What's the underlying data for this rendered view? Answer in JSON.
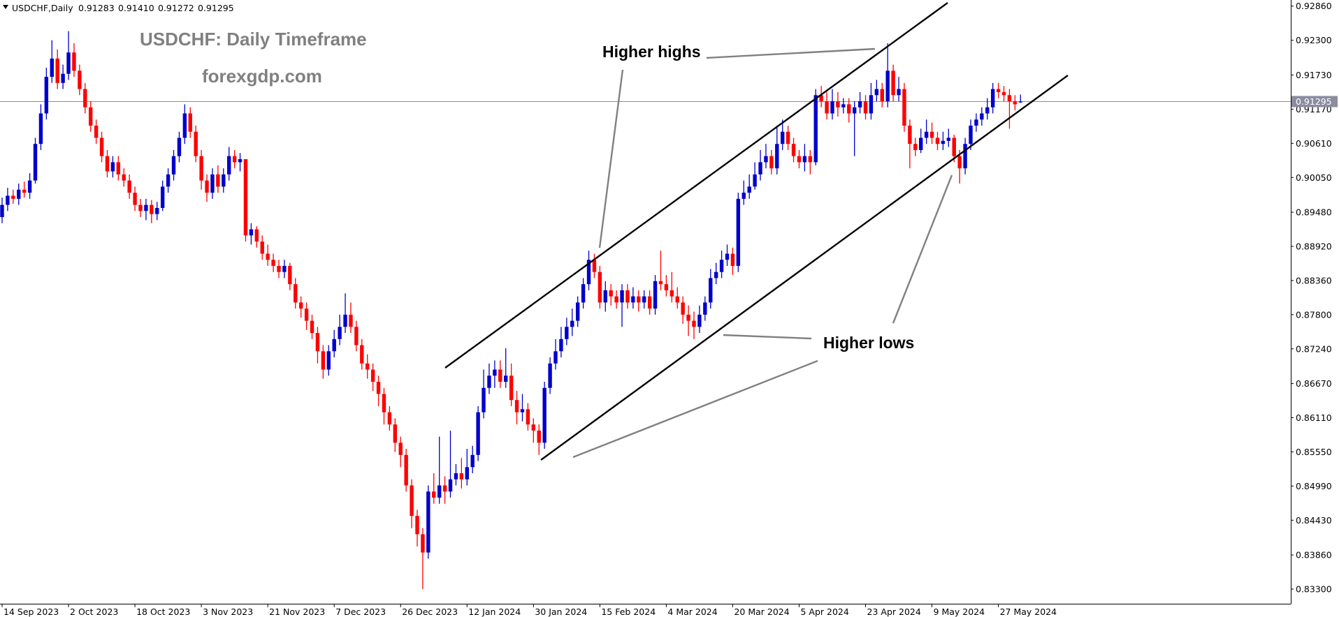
{
  "chart_data": {
    "type": "candlestick",
    "symbol": "USDCHF,Daily",
    "header_labels": [
      "0.91283",
      "0.91410",
      "0.91272",
      "0.91295"
    ],
    "title": "USDCHF: Daily Timeframe",
    "subtitle": "forexgdp.com",
    "annotations": [
      "Higher highs",
      "Higher lows"
    ],
    "up_color": "#0000cc",
    "down_color": "#ff0000",
    "ylim": [
      0.8306,
      0.9296
    ],
    "yticks": [
      {
        "value": 0.9286,
        "label": "0.92860"
      },
      {
        "value": 0.923,
        "label": "0.92300"
      },
      {
        "value": 0.9173,
        "label": "0.91730"
      },
      {
        "value": 0.9117,
        "label": "0.91170"
      },
      {
        "value": 0.9061,
        "label": "0.90610"
      },
      {
        "value": 0.9005,
        "label": "0.90050"
      },
      {
        "value": 0.8948,
        "label": "0.89480"
      },
      {
        "value": 0.8892,
        "label": "0.88920"
      },
      {
        "value": 0.8836,
        "label": "0.88360"
      },
      {
        "value": 0.878,
        "label": "0.87800"
      },
      {
        "value": 0.8724,
        "label": "0.87240"
      },
      {
        "value": 0.8667,
        "label": "0.86670"
      },
      {
        "value": 0.8611,
        "label": "0.86110"
      },
      {
        "value": 0.8555,
        "label": "0.85550"
      },
      {
        "value": 0.8499,
        "label": "0.84990"
      },
      {
        "value": 0.8443,
        "label": "0.84430"
      },
      {
        "value": 0.8386,
        "label": "0.83860"
      },
      {
        "value": 0.833,
        "label": "0.83300"
      }
    ],
    "date_labels": {
      "0": "14 Sep 2023",
      "12": "2 Oct 2023",
      "24": "18 Oct 2023",
      "36": "3 Nov 2023",
      "48": "21 Nov 2023",
      "60": "7 Dec 2023",
      "72": "26 Dec 2023",
      "84": "12 Jan 2024",
      "96": "30 Jan 2024",
      "108": "15 Feb 2024",
      "120": "4 Mar 2024",
      "132": "20 Mar 2024",
      "144": "5 Apr 2024",
      "156": "23 Apr 2024",
      "168": "9 May 2024",
      "180": "27 May 2024"
    },
    "candles": [
      [
        0.894,
        0.8972,
        0.893,
        0.896
      ],
      [
        0.896,
        0.8988,
        0.895,
        0.8975
      ],
      [
        0.8975,
        0.8985,
        0.8962,
        0.897
      ],
      [
        0.897,
        0.8995,
        0.896,
        0.8985
      ],
      [
        0.8985,
        0.8998,
        0.8972,
        0.898
      ],
      [
        0.898,
        0.9012,
        0.897,
        0.9
      ],
      [
        0.9,
        0.907,
        0.8995,
        0.906
      ],
      [
        0.906,
        0.9125,
        0.905,
        0.911
      ],
      [
        0.911,
        0.9185,
        0.91,
        0.917
      ],
      [
        0.917,
        0.923,
        0.916,
        0.92
      ],
      [
        0.92,
        0.9215,
        0.915,
        0.916
      ],
      [
        0.916,
        0.919,
        0.915,
        0.9175
      ],
      [
        0.9175,
        0.9245,
        0.9165,
        0.921
      ],
      [
        0.921,
        0.9225,
        0.917,
        0.918
      ],
      [
        0.918,
        0.919,
        0.914,
        0.915
      ],
      [
        0.915,
        0.916,
        0.911,
        0.912
      ],
      [
        0.912,
        0.913,
        0.908,
        0.909
      ],
      [
        0.909,
        0.91,
        0.906,
        0.907
      ],
      [
        0.907,
        0.908,
        0.903,
        0.904
      ],
      [
        0.904,
        0.905,
        0.9005,
        0.9015
      ],
      [
        0.9015,
        0.904,
        0.9005,
        0.903
      ],
      [
        0.903,
        0.904,
        0.9,
        0.901
      ],
      [
        0.901,
        0.902,
        0.899,
        0.9
      ],
      [
        0.9,
        0.901,
        0.897,
        0.898
      ],
      [
        0.898,
        0.899,
        0.895,
        0.896
      ],
      [
        0.896,
        0.897,
        0.894,
        0.895
      ],
      [
        0.895,
        0.897,
        0.8935,
        0.896
      ],
      [
        0.896,
        0.8968,
        0.893,
        0.8945
      ],
      [
        0.8945,
        0.8965,
        0.8935,
        0.8955
      ],
      [
        0.8955,
        0.9,
        0.895,
        0.899
      ],
      [
        0.899,
        0.902,
        0.898,
        0.901
      ],
      [
        0.901,
        0.905,
        0.9,
        0.904
      ],
      [
        0.904,
        0.908,
        0.903,
        0.907
      ],
      [
        0.907,
        0.9125,
        0.906,
        0.911
      ],
      [
        0.911,
        0.912,
        0.907,
        0.908
      ],
      [
        0.908,
        0.909,
        0.903,
        0.904
      ],
      [
        0.904,
        0.905,
        0.8985,
        0.9
      ],
      [
        0.9,
        0.901,
        0.8965,
        0.898
      ],
      [
        0.898,
        0.902,
        0.897,
        0.901
      ],
      [
        0.901,
        0.9025,
        0.898,
        0.899
      ],
      [
        0.899,
        0.902,
        0.898,
        0.901
      ],
      [
        0.901,
        0.9055,
        0.9,
        0.904
      ],
      [
        0.904,
        0.905,
        0.902,
        0.903
      ],
      [
        0.903,
        0.9045,
        0.9015,
        0.9035
      ],
      [
        0.9035,
        0.9035,
        0.89,
        0.891
      ],
      [
        0.891,
        0.893,
        0.8895,
        0.892
      ],
      [
        0.892,
        0.8925,
        0.889,
        0.89
      ],
      [
        0.89,
        0.891,
        0.887,
        0.888
      ],
      [
        0.888,
        0.8895,
        0.886,
        0.887
      ],
      [
        0.887,
        0.888,
        0.885,
        0.886
      ],
      [
        0.886,
        0.887,
        0.884,
        0.885
      ],
      [
        0.885,
        0.887,
        0.884,
        0.886
      ],
      [
        0.886,
        0.8865,
        0.882,
        0.883
      ],
      [
        0.883,
        0.884,
        0.879,
        0.88
      ],
      [
        0.88,
        0.881,
        0.8775,
        0.879
      ],
      [
        0.879,
        0.88,
        0.8755,
        0.877
      ],
      [
        0.877,
        0.878,
        0.874,
        0.875
      ],
      [
        0.875,
        0.876,
        0.87,
        0.872
      ],
      [
        0.872,
        0.873,
        0.8675,
        0.869
      ],
      [
        0.869,
        0.873,
        0.868,
        0.872
      ],
      [
        0.872,
        0.8755,
        0.871,
        0.874
      ],
      [
        0.874,
        0.878,
        0.873,
        0.876
      ],
      [
        0.876,
        0.8815,
        0.875,
        0.878
      ],
      [
        0.878,
        0.88,
        0.875,
        0.876
      ],
      [
        0.876,
        0.877,
        0.872,
        0.873
      ],
      [
        0.873,
        0.874,
        0.869,
        0.87
      ],
      [
        0.87,
        0.8715,
        0.8675,
        0.869
      ],
      [
        0.869,
        0.87,
        0.8655,
        0.867
      ],
      [
        0.867,
        0.868,
        0.863,
        0.865
      ],
      [
        0.865,
        0.866,
        0.86,
        0.862
      ],
      [
        0.862,
        0.863,
        0.859,
        0.86
      ],
      [
        0.86,
        0.861,
        0.8555,
        0.857
      ],
      [
        0.857,
        0.858,
        0.853,
        0.855
      ],
      [
        0.855,
        0.856,
        0.849,
        0.85
      ],
      [
        0.85,
        0.851,
        0.843,
        0.845
      ],
      [
        0.845,
        0.846,
        0.84,
        0.842
      ],
      [
        0.842,
        0.843,
        0.833,
        0.839
      ],
      [
        0.839,
        0.85,
        0.838,
        0.849
      ],
      [
        0.849,
        0.852,
        0.847,
        0.848
      ],
      [
        0.848,
        0.858,
        0.847,
        0.85
      ],
      [
        0.85,
        0.8515,
        0.847,
        0.849
      ],
      [
        0.849,
        0.859,
        0.848,
        0.851
      ],
      [
        0.851,
        0.8535,
        0.85,
        0.852
      ],
      [
        0.852,
        0.8545,
        0.8495,
        0.851
      ],
      [
        0.851,
        0.856,
        0.85,
        0.853
      ],
      [
        0.853,
        0.8565,
        0.852,
        0.855
      ],
      [
        0.855,
        0.863,
        0.854,
        0.862
      ],
      [
        0.862,
        0.869,
        0.861,
        0.866
      ],
      [
        0.866,
        0.87,
        0.865,
        0.868
      ],
      [
        0.868,
        0.8705,
        0.866,
        0.869
      ],
      [
        0.869,
        0.8705,
        0.866,
        0.867
      ],
      [
        0.867,
        0.8725,
        0.866,
        0.868
      ],
      [
        0.868,
        0.87,
        0.863,
        0.864
      ],
      [
        0.864,
        0.8655,
        0.86,
        0.862
      ],
      [
        0.862,
        0.865,
        0.8605,
        0.8625
      ],
      [
        0.8625,
        0.8635,
        0.859,
        0.86
      ],
      [
        0.86,
        0.861,
        0.857,
        0.859
      ],
      [
        0.859,
        0.86,
        0.855,
        0.857
      ],
      [
        0.857,
        0.867,
        0.856,
        0.866
      ],
      [
        0.866,
        0.871,
        0.865,
        0.87
      ],
      [
        0.87,
        0.874,
        0.869,
        0.872
      ],
      [
        0.872,
        0.876,
        0.871,
        0.874
      ],
      [
        0.874,
        0.8775,
        0.873,
        0.876
      ],
      [
        0.876,
        0.879,
        0.8745,
        0.877
      ],
      [
        0.877,
        0.881,
        0.876,
        0.88
      ],
      [
        0.88,
        0.884,
        0.879,
        0.883
      ],
      [
        0.883,
        0.8885,
        0.882,
        0.887
      ],
      [
        0.887,
        0.888,
        0.884,
        0.885
      ],
      [
        0.885,
        0.886,
        0.879,
        0.88
      ],
      [
        0.88,
        0.8835,
        0.8785,
        0.882
      ],
      [
        0.882,
        0.883,
        0.8795,
        0.881
      ],
      [
        0.881,
        0.882,
        0.879,
        0.88
      ],
      [
        0.88,
        0.883,
        0.876,
        0.882
      ],
      [
        0.882,
        0.883,
        0.879,
        0.88
      ],
      [
        0.88,
        0.8825,
        0.879,
        0.881
      ],
      [
        0.881,
        0.882,
        0.8785,
        0.88
      ],
      [
        0.88,
        0.882,
        0.879,
        0.881
      ],
      [
        0.881,
        0.882,
        0.878,
        0.879
      ],
      [
        0.879,
        0.8845,
        0.878,
        0.8835
      ],
      [
        0.8835,
        0.8885,
        0.882,
        0.883
      ],
      [
        0.883,
        0.8845,
        0.881,
        0.882
      ],
      [
        0.882,
        0.885,
        0.88,
        0.881
      ],
      [
        0.881,
        0.8825,
        0.879,
        0.88
      ],
      [
        0.88,
        0.881,
        0.8765,
        0.878
      ],
      [
        0.878,
        0.8795,
        0.8745,
        0.877
      ],
      [
        0.877,
        0.8785,
        0.874,
        0.876
      ],
      [
        0.876,
        0.8795,
        0.875,
        0.878
      ],
      [
        0.878,
        0.881,
        0.877,
        0.88
      ],
      [
        0.88,
        0.8855,
        0.879,
        0.884
      ],
      [
        0.884,
        0.8865,
        0.883,
        0.885
      ],
      [
        0.885,
        0.8885,
        0.884,
        0.887
      ],
      [
        0.887,
        0.8895,
        0.886,
        0.888
      ],
      [
        0.888,
        0.889,
        0.8845,
        0.886
      ],
      [
        0.886,
        0.898,
        0.885,
        0.897
      ],
      [
        0.897,
        0.9,
        0.896,
        0.898
      ],
      [
        0.898,
        0.901,
        0.897,
        0.899
      ],
      [
        0.899,
        0.903,
        0.8985,
        0.901
      ],
      [
        0.901,
        0.905,
        0.9,
        0.903
      ],
      [
        0.903,
        0.906,
        0.902,
        0.904
      ],
      [
        0.904,
        0.905,
        0.901,
        0.902
      ],
      [
        0.902,
        0.909,
        0.901,
        0.906
      ],
      [
        0.906,
        0.91,
        0.905,
        0.908
      ],
      [
        0.908,
        0.909,
        0.905,
        0.906
      ],
      [
        0.906,
        0.907,
        0.903,
        0.904
      ],
      [
        0.904,
        0.905,
        0.902,
        0.903
      ],
      [
        0.903,
        0.906,
        0.9015,
        0.904
      ],
      [
        0.904,
        0.905,
        0.901,
        0.903
      ],
      [
        0.903,
        0.915,
        0.9025,
        0.914
      ],
      [
        0.914,
        0.9155,
        0.912,
        0.913
      ],
      [
        0.913,
        0.9145,
        0.91,
        0.911
      ],
      [
        0.911,
        0.915,
        0.91,
        0.913
      ],
      [
        0.913,
        0.9145,
        0.9105,
        0.912
      ],
      [
        0.912,
        0.9135,
        0.911,
        0.9125
      ],
      [
        0.9125,
        0.9135,
        0.9095,
        0.911
      ],
      [
        0.911,
        0.913,
        0.904,
        0.912
      ],
      [
        0.912,
        0.9145,
        0.911,
        0.913
      ],
      [
        0.913,
        0.914,
        0.91,
        0.911
      ],
      [
        0.911,
        0.916,
        0.91,
        0.914
      ],
      [
        0.914,
        0.9165,
        0.913,
        0.915
      ],
      [
        0.915,
        0.916,
        0.912,
        0.913
      ],
      [
        0.913,
        0.9225,
        0.912,
        0.918
      ],
      [
        0.918,
        0.919,
        0.913,
        0.914
      ],
      [
        0.914,
        0.917,
        0.913,
        0.915
      ],
      [
        0.915,
        0.916,
        0.908,
        0.909
      ],
      [
        0.909,
        0.91,
        0.902,
        0.906
      ],
      [
        0.906,
        0.907,
        0.904,
        0.905
      ],
      [
        0.905,
        0.9085,
        0.9045,
        0.907
      ],
      [
        0.907,
        0.91,
        0.906,
        0.908
      ],
      [
        0.908,
        0.9095,
        0.906,
        0.907
      ],
      [
        0.907,
        0.908,
        0.905,
        0.906
      ],
      [
        0.906,
        0.908,
        0.905,
        0.9065
      ],
      [
        0.9065,
        0.9085,
        0.9055,
        0.907
      ],
      [
        0.907,
        0.9075,
        0.903,
        0.904
      ],
      [
        0.904,
        0.905,
        0.8995,
        0.902
      ],
      [
        0.902,
        0.907,
        0.901,
        0.906
      ],
      [
        0.906,
        0.91,
        0.905,
        0.909
      ],
      [
        0.909,
        0.911,
        0.908,
        0.91
      ],
      [
        0.91,
        0.912,
        0.909,
        0.911
      ],
      [
        0.911,
        0.9135,
        0.91,
        0.912
      ],
      [
        0.912,
        0.916,
        0.911,
        0.915
      ],
      [
        0.915,
        0.916,
        0.9135,
        0.9145
      ],
      [
        0.9145,
        0.9155,
        0.913,
        0.914
      ],
      [
        0.914,
        0.915,
        0.9085,
        0.913
      ],
      [
        0.913,
        0.914,
        0.9115,
        0.9125
      ],
      [
        0.91283,
        0.9141,
        0.91272,
        0.91295
      ]
    ]
  }
}
